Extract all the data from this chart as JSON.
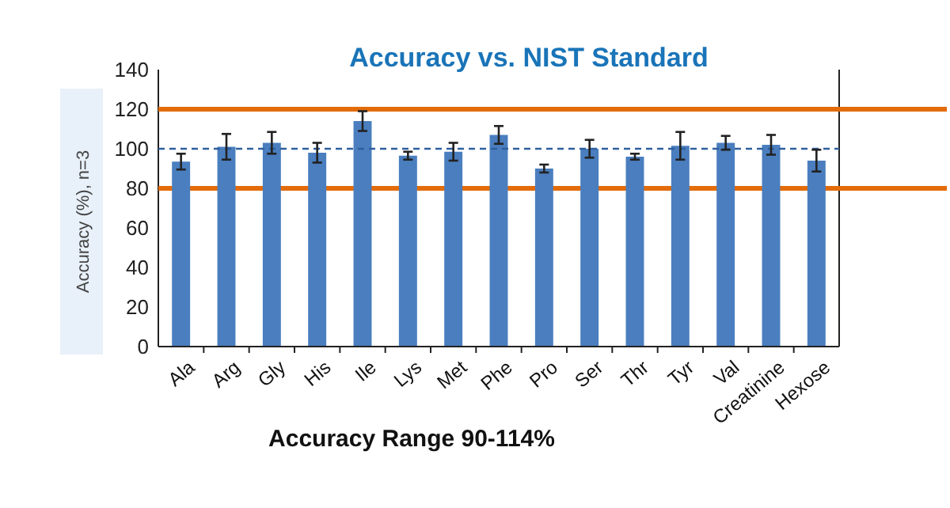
{
  "chart_data": {
    "type": "bar",
    "title": "Accuracy vs. NIST Standard",
    "xlabel": "Accuracy Range 90-114%",
    "ylabel": "Accuracy (%), n=3",
    "categories": [
      "Ala",
      "Arg",
      "Gly",
      "His",
      "Ile",
      "Lys",
      "Met",
      "Phe",
      "Pro",
      "Ser",
      "Thr",
      "Tyr",
      "Val",
      "Creatinine",
      "Hexose"
    ],
    "values": [
      93.5,
      101,
      103,
      98,
      114,
      96.5,
      98.5,
      107,
      90,
      100,
      96,
      101.5,
      103,
      102,
      94
    ],
    "errors": [
      4,
      6.5,
      5.5,
      5,
      5,
      2,
      4.5,
      4.5,
      2,
      4.5,
      1.5,
      7,
      3.5,
      5,
      5.5
    ],
    "color": "#4a7ebf",
    "ylim": [
      0,
      140
    ],
    "yticks": [
      0,
      20,
      40,
      60,
      80,
      100,
      120,
      140
    ],
    "grid": false,
    "ref_lines": [
      {
        "axis": "y",
        "value": 120,
        "color": "#e36c0a",
        "line_style": "solid"
      },
      {
        "axis": "y",
        "value": 80,
        "color": "#e36c0a",
        "line_style": "solid"
      },
      {
        "axis": "y",
        "value": 100,
        "color": "#2e5f9e",
        "line_style": "dashed"
      }
    ]
  }
}
